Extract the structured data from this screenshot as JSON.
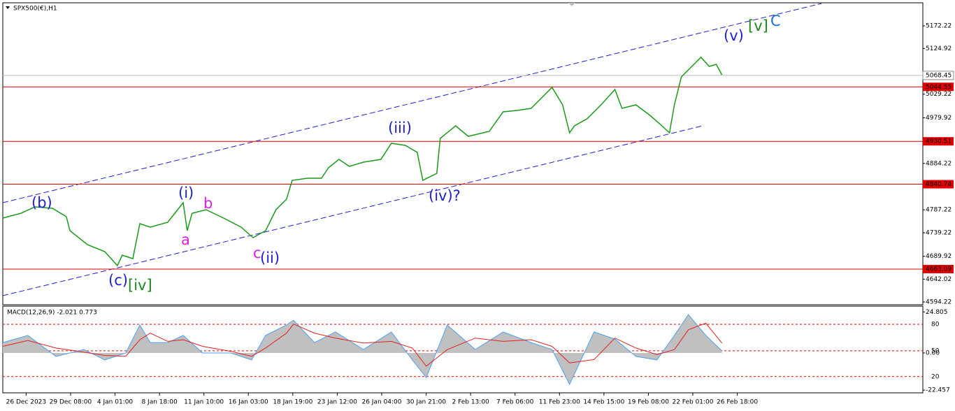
{
  "chart_data": [
    {
      "type": "line",
      "title": "SPX500(€),H1",
      "x": [
        0,
        16.4,
        28.9,
        44.7,
        57.2,
        60.4,
        76.1,
        91.8,
        103.1,
        107.5,
        117.0,
        123.3,
        132.7,
        148.4,
        162.3,
        166.0,
        170.4,
        183.0,
        198.7,
        214.5,
        225.2,
        236.5,
        245.9,
        255.3,
        260.4,
        274.2,
        286.8,
        293.1,
        302.5,
        311.9,
        324.5,
        340.3,
        349.7,
        362.3,
        373.0,
        378.0,
        390.6,
        393.7,
        407.5,
        418.9,
        437.7,
        450.3,
        462.9,
        475.5,
        484.9,
        494.3,
        503.8,
        510.1,
        514.5,
        525.8,
        538.4,
        550.9,
        557.2,
        569.8,
        582.4,
        591.8,
        600.0,
        604.4,
        610.7,
        620.1,
        628.3,
        635.8,
        642.1,
        647.2
      ],
      "series": [
        {
          "name": "SPX500",
          "color": "#1a9a1a",
          "values": [
            4769.8,
            4780.0,
            4793.2,
            4790.3,
            4772.7,
            4743.5,
            4714.2,
            4699.6,
            4670.3,
            4692.2,
            4684.9,
            4758.1,
            4750.8,
            4761.0,
            4802.0,
            4743.5,
            4780.0,
            4787.4,
            4769.8,
            4750.8,
            4728.8,
            4743.5,
            4787.4,
            4809.3,
            4848.8,
            4853.2,
            4853.2,
            4875.2,
            4892.7,
            4878.1,
            4886.9,
            4892.7,
            4926.4,
            4922.0,
            4907.4,
            4848.8,
            4863.5,
            4936.6,
            4963.0,
            4941.0,
            4951.3,
            4992.2,
            4995.2,
            4999.5,
            5021.5,
            5043.4,
            5006.9,
            4948.3,
            4963.0,
            4977.6,
            5006.9,
            5039.1,
            4999.5,
            5006.9,
            4984.9,
            4965.9,
            4948.3,
            5006.9,
            5065.4,
            5087.3,
            5106.4,
            5087.3,
            5091.7,
            5069.8
          ]
        }
      ],
      "xlim": [
        0,
        828
      ],
      "ylim": [
        4588.4,
        5220.5
      ],
      "xticks": [
        {
          "value": 21,
          "label": "26 Dec 2023"
        },
        {
          "value": 61,
          "label": "29 Dec 08:00"
        },
        {
          "value": 101,
          "label": "4 Jan 01:00"
        },
        {
          "value": 141,
          "label": "8 Jan 18:00"
        },
        {
          "value": 181,
          "label": "11 Jan 10:00"
        },
        {
          "value": 221,
          "label": "16 Jan 03:00"
        },
        {
          "value": 261,
          "label": "18 Jan 19:00"
        },
        {
          "value": 301,
          "label": "23 Jan 12:00"
        },
        {
          "value": 341,
          "label": "26 Jan 04:00"
        },
        {
          "value": 381,
          "label": "30 Jan 21:00"
        },
        {
          "value": 421,
          "label": "2 Feb 13:00"
        },
        {
          "value": 461,
          "label": "7 Feb 06:00"
        },
        {
          "value": 501,
          "label": "11 Feb 23:00"
        },
        {
          "value": 541,
          "label": "14 Feb 15:00"
        },
        {
          "value": 581,
          "label": "19 Feb 08:00"
        },
        {
          "value": 621,
          "label": "22 Feb 01:00"
        },
        {
          "value": 661,
          "label": "26 Feb 18:00"
        }
      ],
      "yticks": [
        5172.22,
        5124.92,
        5029.22,
        4979.92,
        4884.22,
        4787.22,
        4739.22,
        4689.92,
        4642.02,
        4594.22
      ],
      "levels": [
        5044.55,
        4930.51,
        4840.74,
        4663.09
      ],
      "level_color": "#e00000",
      "current_price": 5068.45,
      "annotations": [
        {
          "text": "(b)",
          "color": "#1f1fd0"
        },
        {
          "text": "(c)",
          "color": "#1f1fd0"
        },
        {
          "text": "[iv]",
          "color": "#1a8a1a"
        },
        {
          "text": "(i)",
          "color": "#1f1fd0"
        },
        {
          "text": "a",
          "color": "#e020e0"
        },
        {
          "text": "b",
          "color": "#e020e0"
        },
        {
          "text": "c",
          "color": "#e020e0"
        },
        {
          "text": "(ii)",
          "color": "#1f1fd0"
        },
        {
          "text": "(iii)",
          "color": "#1f1fd0"
        },
        {
          "text": "(iv)?",
          "color": "#1f1fd0"
        },
        {
          "text": "(v)",
          "color": "#1f1fd0"
        },
        {
          "text": "[v]",
          "color": "#1a8a1a"
        },
        {
          "text": "C",
          "color": "#1f6fd0"
        }
      ]
    },
    {
      "type": "macd",
      "title": "MACD(12,26,9) -2.021 0.773",
      "x": [
        0,
        22.6,
        47.8,
        73.0,
        91.8,
        110.7,
        123.3,
        132.7,
        148.4,
        162.3,
        179.9,
        205.1,
        223.9,
        236.5,
        255.3,
        261.6,
        280.5,
        299.4,
        324.5,
        349.7,
        368.6,
        381.1,
        400.0,
        425.2,
        450.3,
        475.5,
        494.3,
        510.1,
        532.1,
        550.9,
        569.8,
        588.7,
        604.4,
        617.0,
        632.7,
        647.2
      ],
      "series": [
        {
          "name": "MACD",
          "color": "#4aa0f0",
          "fill": "#c0c0c0",
          "values": [
            6.3,
            10.6,
            -2.1,
            2.1,
            -4.2,
            0,
            16.9,
            6.3,
            6.3,
            10.6,
            0,
            0,
            -4.2,
            10.6,
            16.9,
            19.8,
            6.3,
            12.7,
            2.1,
            12.7,
            -4.2,
            -14.8,
            16.9,
            2.1,
            12.7,
            6.3,
            2.1,
            -19.0,
            12.7,
            8.4,
            -2.1,
            -4.2,
            10.6,
            23.2,
            10.6,
            1.3
          ]
        },
        {
          "name": "Signal",
          "color": "#e02020",
          "values": [
            4.0,
            7.5,
            3.0,
            0.5,
            -1.5,
            -2.0,
            8.0,
            12.0,
            7.0,
            8.0,
            4.0,
            1.0,
            -2.0,
            3.0,
            12.0,
            17.5,
            12.0,
            9.0,
            6.0,
            7.0,
            3.0,
            -8.0,
            2.0,
            9.0,
            7.0,
            8.0,
            4.0,
            -6.0,
            -4.0,
            9.0,
            3.0,
            -1.0,
            2.0,
            14.0,
            18.0,
            6.0
          ]
        }
      ],
      "xlim": [
        0,
        828
      ],
      "ylim": [
        -24.1,
        28.3
      ],
      "yticks": [
        24.805,
        {
          "value": 0,
          "label": "0.00"
        },
        -22.457
      ],
      "levels": [
        {
          "value": 17.3,
          "label": "80"
        },
        {
          "value": 1.3,
          "label": "50"
        },
        {
          "value": -14.3,
          "label": "20"
        }
      ],
      "level_color": "#e00000"
    }
  ]
}
